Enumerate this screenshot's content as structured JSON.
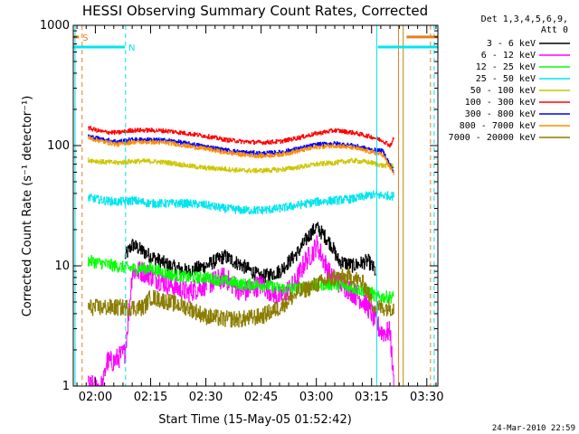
{
  "chart_data": {
    "type": "line",
    "title": "HESSI Observing Summary Count Rates, Corrected",
    "xlabel": "Start Time (15-May-05 01:52:42)",
    "ylabel": "Corrected Count Rate (s⁻¹ detector⁻¹)",
    "y_scale": "log",
    "ylim": [
      1,
      1000
    ],
    "y_ticks": [
      {
        "v": 1,
        "label": "1"
      },
      {
        "v": 10,
        "label": "10"
      },
      {
        "v": 100,
        "label": "100"
      },
      {
        "v": 1000,
        "label": "1000"
      }
    ],
    "xlim": [
      114,
      213
    ],
    "x_unit": "minutes after 00:00 UT",
    "x_ticks": [
      {
        "v": 120,
        "label": "02:00"
      },
      {
        "v": 135,
        "label": "02:15"
      },
      {
        "v": 150,
        "label": "02:30"
      },
      {
        "v": 165,
        "label": "02:45"
      },
      {
        "v": 180,
        "label": "03:00"
      },
      {
        "v": 195,
        "label": "03:15"
      },
      {
        "v": 210,
        "label": "03:30"
      }
    ],
    "legend": {
      "placement": "right",
      "header": [
        "Det 1,3,4,5,6,9,",
        "Att 0"
      ]
    },
    "flags": [
      {
        "label": "S",
        "color": "#e87d1e",
        "x_start": 114,
        "x_end": 115.5,
        "y": 800
      },
      {
        "label": "N",
        "color": "#00e5ee",
        "x_start": 114,
        "x_end": 128,
        "y": 660
      },
      {
        "label": "",
        "color": "#00e5ee",
        "x_start": 196.7,
        "x_end": 213,
        "y": 660
      },
      {
        "label": "",
        "color": "#e87d1e",
        "x_start": 204.5,
        "x_end": 213,
        "y": 800
      }
    ],
    "vlines": [
      {
        "x": 114.5,
        "color": "#00e5ee",
        "dash": false
      },
      {
        "x": 116.4,
        "color": "#e87d1e",
        "dash": true
      },
      {
        "x": 128.2,
        "color": "#00e5ee",
        "dash": true
      },
      {
        "x": 196.4,
        "color": "#00e5ee",
        "dash": false
      },
      {
        "x": 202.3,
        "color": "#e87d1e",
        "dash": false
      },
      {
        "x": 203.6,
        "color": "#b8860b",
        "dash": false
      },
      {
        "x": 211.0,
        "color": "#e87d1e",
        "dash": true
      },
      {
        "x": 212.0,
        "color": "#00e5ee",
        "dash": true
      }
    ],
    "series": [
      {
        "name": "3 - 6 keV",
        "color": "#000000",
        "noise": 0.06,
        "x": [
          128,
          130,
          135,
          140,
          145,
          150,
          155,
          160,
          165,
          170,
          175,
          178,
          180,
          182,
          184,
          186,
          190,
          194,
          196
        ],
        "y": [
          12,
          15,
          12,
          10,
          9,
          10,
          12,
          10,
          8,
          9,
          13,
          18,
          21,
          18,
          15,
          11,
          10,
          11,
          9
        ]
      },
      {
        "name": "6 - 12 keV",
        "color": "#ff00ff",
        "noise": 0.09,
        "x": [
          118,
          120,
          122,
          123,
          124,
          125,
          126,
          128,
          129,
          130,
          133,
          136,
          140,
          145,
          150,
          155,
          160,
          165,
          170,
          174,
          177,
          179,
          180,
          181,
          182,
          184,
          187,
          190,
          193,
          194,
          195,
          196,
          197,
          198,
          199,
          200,
          201
        ],
        "y": [
          1,
          1,
          1,
          1.6,
          1.6,
          1.6,
          1.7,
          1.9,
          4,
          9,
          9,
          8,
          7,
          6,
          7,
          8,
          6,
          7,
          5.5,
          7,
          11,
          13,
          15,
          13,
          11,
          8,
          7,
          6,
          5,
          4.5,
          4,
          3.5,
          3,
          2.8,
          2.8,
          2.8,
          1
        ]
      },
      {
        "name": "12 - 25 keV",
        "color": "#00ff00",
        "noise": 0.05,
        "x": [
          118,
          125,
          130,
          135,
          140,
          145,
          150,
          155,
          160,
          165,
          170,
          175,
          180,
          185,
          190,
          195,
          196,
          200,
          201
        ],
        "y": [
          11,
          10,
          9.5,
          9.5,
          8.5,
          8,
          8,
          7.5,
          7,
          7,
          6.5,
          6.5,
          7,
          7,
          6.5,
          6,
          5.5,
          5.5,
          5.5
        ]
      },
      {
        "name": "25 - 50 keV",
        "color": "#00e5ee",
        "noise": 0.035,
        "x": [
          118,
          122,
          126,
          130,
          135,
          140,
          145,
          150,
          155,
          160,
          165,
          170,
          175,
          180,
          185,
          190,
          195,
          201
        ],
        "y": [
          37,
          35,
          34,
          35,
          33,
          33,
          33,
          32,
          30,
          29,
          29,
          30,
          32,
          34,
          35,
          36,
          39,
          38
        ]
      },
      {
        "name": "50 - 100 keV",
        "color": "#cdc600",
        "noise": 0.02,
        "x": [
          118,
          122,
          126,
          130,
          135,
          140,
          145,
          150,
          155,
          160,
          165,
          170,
          175,
          180,
          185,
          190,
          195,
          198,
          201
        ],
        "y": [
          76,
          73,
          72,
          74,
          74,
          72,
          68,
          65,
          64,
          62,
          62,
          63,
          66,
          70,
          72,
          75,
          72,
          68,
          68
        ]
      },
      {
        "name": "100 - 300 keV",
        "color": "#ff0000",
        "noise": 0.018,
        "x": [
          118,
          122,
          126,
          130,
          135,
          140,
          145,
          150,
          155,
          160,
          165,
          170,
          175,
          180,
          185,
          190,
          195,
          198,
          200,
          201
        ],
        "y": [
          140,
          130,
          128,
          134,
          134,
          132,
          126,
          120,
          112,
          108,
          106,
          108,
          116,
          126,
          134,
          128,
          118,
          110,
          100,
          115
        ]
      },
      {
        "name": "300 - 800 keV",
        "color": "#0000ff",
        "noise": 0.018,
        "x": [
          118,
          122,
          126,
          130,
          135,
          140,
          145,
          150,
          155,
          160,
          165,
          170,
          175,
          180,
          185,
          190,
          195,
          198,
          201
        ],
        "y": [
          120,
          112,
          108,
          112,
          112,
          110,
          104,
          98,
          92,
          88,
          86,
          88,
          94,
          102,
          104,
          100,
          92,
          90,
          60
        ]
      },
      {
        "name": "800 - 7000 keV",
        "color": "#ff8c00",
        "noise": 0.018,
        "x": [
          118,
          122,
          126,
          130,
          135,
          140,
          145,
          150,
          155,
          160,
          165,
          170,
          175,
          180,
          185,
          190,
          195,
          198,
          201
        ],
        "y": [
          116,
          108,
          102,
          107,
          107,
          105,
          99,
          94,
          88,
          84,
          82,
          84,
          90,
          97,
          100,
          96,
          88,
          84,
          58
        ]
      },
      {
        "name": "7000 - 20000 keV",
        "color": "#8b7d00",
        "noise": 0.07,
        "x": [
          118,
          125,
          130,
          133,
          135,
          140,
          145,
          150,
          155,
          160,
          165,
          170,
          175,
          180,
          185,
          190,
          193,
          195,
          196,
          201
        ],
        "y": [
          4.5,
          4.5,
          4.5,
          4.5,
          5.5,
          5,
          4.5,
          3.8,
          3.6,
          3.6,
          3.8,
          4.5,
          6,
          7,
          8,
          8,
          7,
          5,
          4.5,
          4.5
        ]
      }
    ]
  },
  "footer": {
    "date": "24-Mar-2010 22:59"
  }
}
